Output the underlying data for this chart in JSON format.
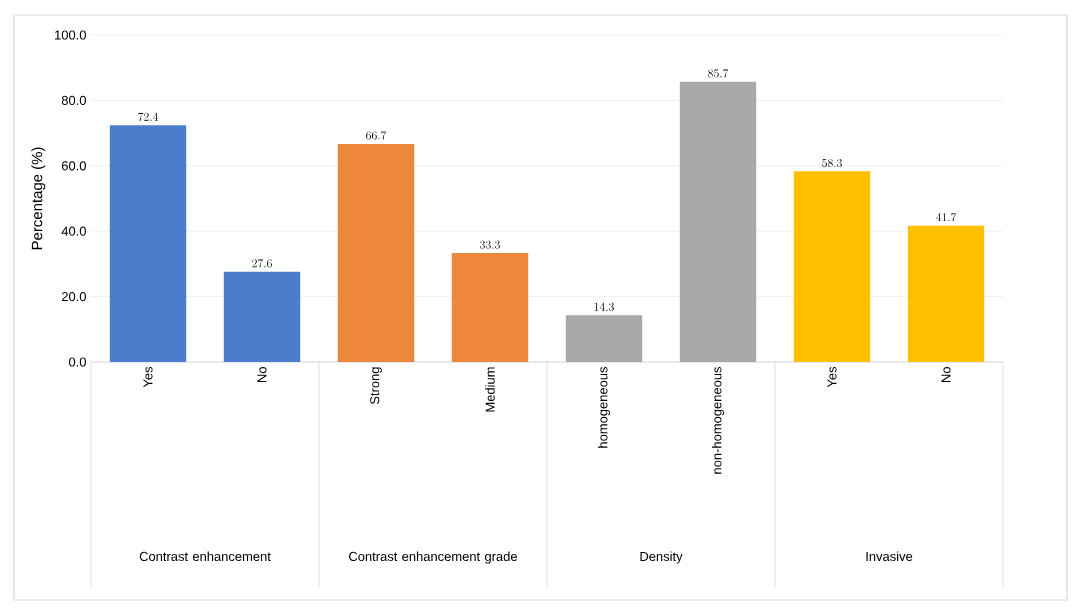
{
  "chart_data": {
    "type": "bar",
    "ylabel": "Percentage (%)",
    "categories": [
      "Yes",
      "No",
      "Strong",
      "Medium",
      "homogeneous",
      "non-homogeneous",
      "Yes",
      "No"
    ],
    "values": [
      72.4,
      27.6,
      66.7,
      33.3,
      14.3,
      85.7,
      58.3,
      41.7
    ],
    "colors": [
      "#4a7dcc",
      "#4a7dcc",
      "#ed873c",
      "#ed873c",
      "#a9a9a9",
      "#a9a9a9",
      "#ffc000",
      "#ffc000"
    ],
    "annotations": [
      "Contrast enhancement",
      "Contrast enhancement grade",
      "Density",
      "Invasive"
    ],
    "ylim": [
      0,
      100
    ],
    "yticks": [
      {
        "value": 0,
        "label": "0.0"
      },
      {
        "value": 20,
        "label": "20.0"
      },
      {
        "value": 40,
        "label": "40.0"
      },
      {
        "value": 60,
        "label": "60.0"
      },
      {
        "value": 80,
        "label": "80.0"
      },
      {
        "value": 100,
        "label": "100.0"
      }
    ],
    "grid": "y",
    "data_labels": true
  }
}
